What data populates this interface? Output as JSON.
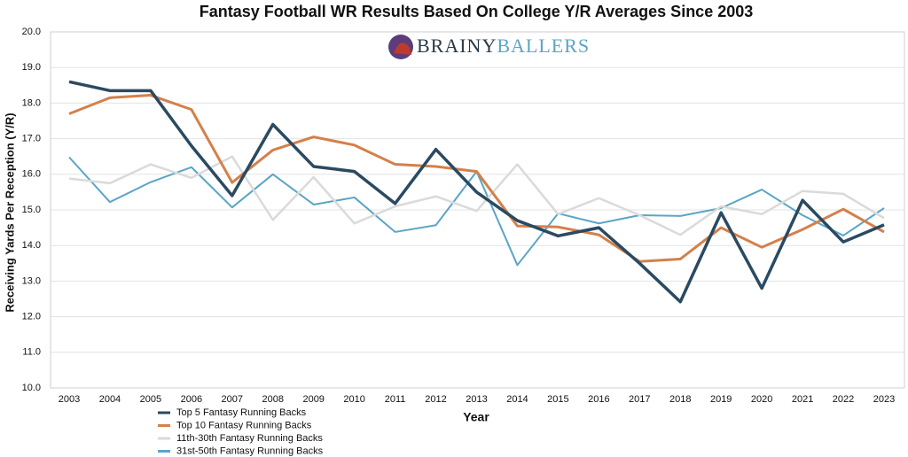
{
  "chart_data": {
    "type": "line",
    "title": "Fantasy Football WR Results Based On College Y/R Averages Since 2003",
    "logo": [
      "BRAINY",
      "BALLERS"
    ],
    "x_label": "Year",
    "y_label": "Receiving Yards Per Reception (Y/R)",
    "categories": [
      "2003",
      "2004",
      "2005",
      "2006",
      "2007",
      "2008",
      "2009",
      "2010",
      "2011",
      "2012",
      "2013",
      "2014",
      "2015",
      "2016",
      "2017",
      "2018",
      "2019",
      "2020",
      "2021",
      "2022",
      "2023"
    ],
    "series": [
      {
        "name": "Top 5 Fantasy Running Backs",
        "color": "#2a4a61",
        "values": [
          18.6,
          18.35,
          18.35,
          16.8,
          15.4,
          17.4,
          16.22,
          16.08,
          15.18,
          16.7,
          15.5,
          14.7,
          14.27,
          14.5,
          13.5,
          12.42,
          14.92,
          12.8,
          15.27,
          14.1,
          14.58
        ]
      },
      {
        "name": "Top 10 Fantasy Running Backs",
        "color": "#d4804a",
        "values": [
          17.7,
          18.15,
          18.22,
          17.82,
          15.77,
          16.68,
          17.05,
          16.82,
          16.28,
          16.22,
          16.08,
          14.55,
          14.52,
          14.3,
          13.55,
          13.62,
          14.5,
          13.95,
          14.45,
          15.02,
          14.38
        ]
      },
      {
        "name": "11th-30th Fantasy Running Backs",
        "color": "#dadada",
        "values": [
          15.88,
          15.75,
          16.28,
          15.9,
          16.5,
          14.72,
          15.92,
          14.62,
          15.1,
          15.38,
          14.97,
          16.28,
          14.88,
          15.33,
          14.85,
          14.3,
          15.1,
          14.88,
          15.53,
          15.45,
          14.77
        ]
      },
      {
        "name": "31st-50th Fantasy Running Backs",
        "color": "#5aa5c6",
        "values": [
          16.48,
          15.22,
          15.78,
          16.2,
          15.07,
          16.0,
          15.15,
          15.35,
          14.38,
          14.57,
          16.08,
          13.45,
          14.9,
          14.62,
          14.85,
          14.83,
          15.05,
          15.57,
          14.85,
          14.28,
          15.05
        ]
      }
    ],
    "ylim": [
      10,
      20
    ],
    "yticks": [
      {
        "value": 10,
        "label": "10.0"
      },
      {
        "value": 11,
        "label": "11.0"
      },
      {
        "value": 12,
        "label": "12.0"
      },
      {
        "value": 13,
        "label": "13.0"
      },
      {
        "value": 14,
        "label": "14.0"
      },
      {
        "value": 15,
        "label": "15.0"
      },
      {
        "value": 16,
        "label": "16.0"
      },
      {
        "value": 17,
        "label": "17.0"
      },
      {
        "value": 18,
        "label": "18.0"
      },
      {
        "value": 19,
        "label": "19.0"
      },
      {
        "value": 20,
        "label": "20.0"
      }
    ],
    "grid": true
  }
}
